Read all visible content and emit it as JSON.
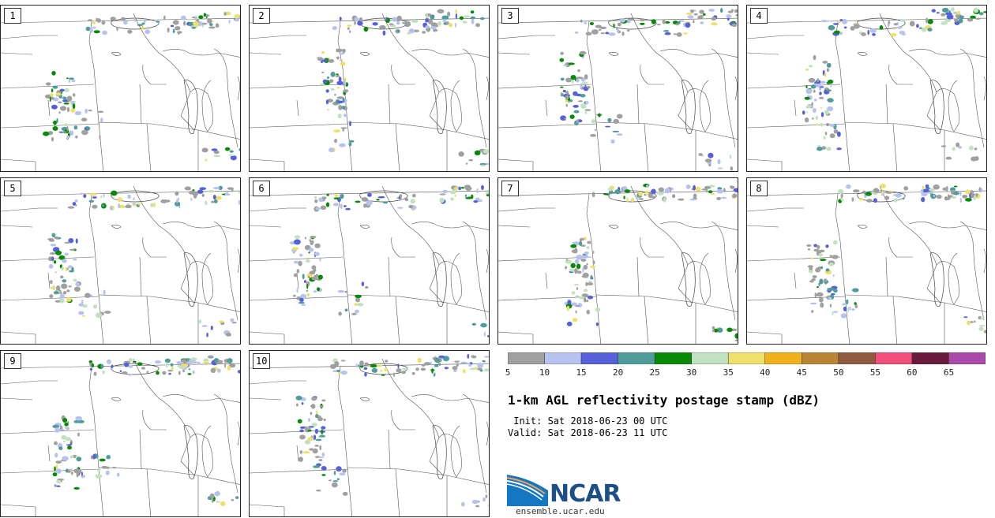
{
  "panels": [
    {
      "label": "1"
    },
    {
      "label": "2"
    },
    {
      "label": "3"
    },
    {
      "label": "4"
    },
    {
      "label": "5"
    },
    {
      "label": "6"
    },
    {
      "label": "7"
    },
    {
      "label": "8"
    },
    {
      "label": "9"
    },
    {
      "label": "10"
    }
  ],
  "legend": {
    "colors": [
      "#a0a0a0",
      "#b7c3ee",
      "#5661d9",
      "#4f9c9c",
      "#088a08",
      "#c0e2c0",
      "#efe06a",
      "#efb21c",
      "#bb8535",
      "#8f5a3f",
      "#f2507a",
      "#6a1a3a",
      "#aa4aaa"
    ],
    "ticks": [
      "5",
      "10",
      "15",
      "20",
      "25",
      "30",
      "35",
      "40",
      "45",
      "50",
      "55",
      "60",
      "65"
    ]
  },
  "title": "1-km AGL reflectivity postage stamp (dBZ)",
  "init": " Init: Sat 2018-06-23 00 UTC",
  "valid": "Valid: Sat 2018-06-23 11 UTC",
  "logo": {
    "text": "NCAR",
    "site": "ensemble.ucar.edu"
  }
}
